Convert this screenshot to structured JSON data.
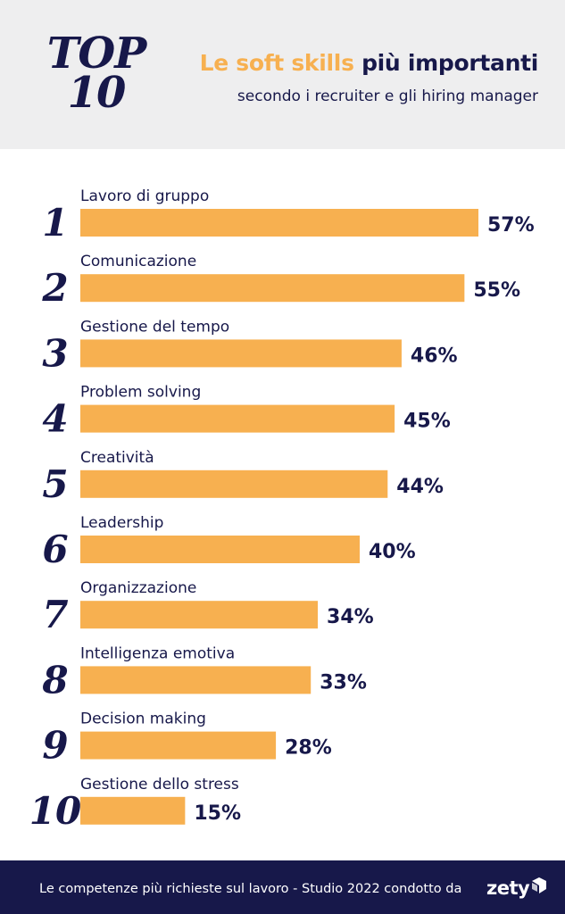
{
  "header": {
    "top_line1": "TOP",
    "top_line2": "10",
    "title_accent": "Le soft skills",
    "title_rest": "più importanti",
    "subtitle": "secondo i recruiter e gli hiring manager"
  },
  "chart_data": {
    "type": "bar",
    "orientation": "horizontal",
    "title": "Le soft skills più importanti",
    "subtitle": "secondo i recruiter e gli hiring manager",
    "ranks": [
      "1",
      "2",
      "3",
      "4",
      "5",
      "6",
      "7",
      "8",
      "9",
      "10"
    ],
    "categories": [
      "Lavoro di gruppo",
      "Comunicazione",
      "Gestione del tempo",
      "Problem solving",
      "Creatività",
      "Leadership",
      "Organizzazione",
      "Intelligenza emotiva",
      "Decision making",
      "Gestione dello stress"
    ],
    "values": [
      57,
      55,
      46,
      45,
      44,
      40,
      34,
      33,
      28,
      15
    ],
    "value_labels": [
      "57%",
      "55%",
      "46%",
      "45%",
      "44%",
      "40%",
      "34%",
      "33%",
      "28%",
      "15%"
    ],
    "unit": "%",
    "xlim": [
      0,
      57
    ],
    "grid": false,
    "bar_color": "#f7b050"
  },
  "footer": {
    "text": "Le competenze più richieste sul lavoro - Studio 2022 condotto da",
    "logo": "zety"
  },
  "colors": {
    "accent": "#f7b050",
    "navy": "#17184a",
    "header_bg": "#eeeeef"
  }
}
